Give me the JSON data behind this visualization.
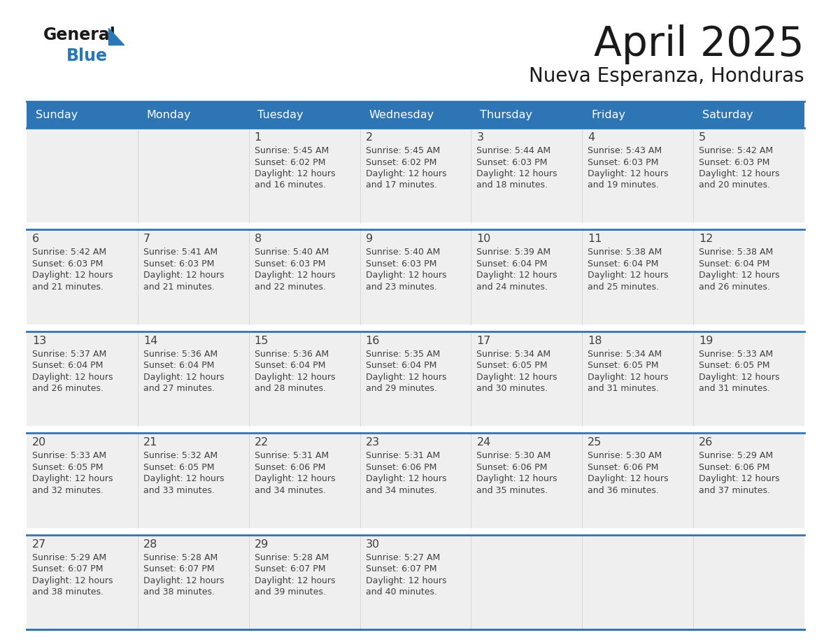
{
  "title": "April 2025",
  "subtitle": "Nueva Esperanza, Honduras",
  "header_bg": "#2E75B6",
  "header_text_color": "#FFFFFF",
  "cell_bg": "#EFEFEF",
  "row_gap_bg": "#FFFFFF",
  "border_color": "#2E75B6",
  "text_color": "#404040",
  "days_of_week": [
    "Sunday",
    "Monday",
    "Tuesday",
    "Wednesday",
    "Thursday",
    "Friday",
    "Saturday"
  ],
  "calendar_data": [
    [
      {
        "day": "",
        "sunrise": "",
        "sunset": "",
        "daylight": ""
      },
      {
        "day": "",
        "sunrise": "",
        "sunset": "",
        "daylight": ""
      },
      {
        "day": "1",
        "sunrise": "5:45 AM",
        "sunset": "6:02 PM",
        "daylight": "12 hours\nand 16 minutes."
      },
      {
        "day": "2",
        "sunrise": "5:45 AM",
        "sunset": "6:02 PM",
        "daylight": "12 hours\nand 17 minutes."
      },
      {
        "day": "3",
        "sunrise": "5:44 AM",
        "sunset": "6:03 PM",
        "daylight": "12 hours\nand 18 minutes."
      },
      {
        "day": "4",
        "sunrise": "5:43 AM",
        "sunset": "6:03 PM",
        "daylight": "12 hours\nand 19 minutes."
      },
      {
        "day": "5",
        "sunrise": "5:42 AM",
        "sunset": "6:03 PM",
        "daylight": "12 hours\nand 20 minutes."
      }
    ],
    [
      {
        "day": "6",
        "sunrise": "5:42 AM",
        "sunset": "6:03 PM",
        "daylight": "12 hours\nand 21 minutes."
      },
      {
        "day": "7",
        "sunrise": "5:41 AM",
        "sunset": "6:03 PM",
        "daylight": "12 hours\nand 21 minutes."
      },
      {
        "day": "8",
        "sunrise": "5:40 AM",
        "sunset": "6:03 PM",
        "daylight": "12 hours\nand 22 minutes."
      },
      {
        "day": "9",
        "sunrise": "5:40 AM",
        "sunset": "6:03 PM",
        "daylight": "12 hours\nand 23 minutes."
      },
      {
        "day": "10",
        "sunrise": "5:39 AM",
        "sunset": "6:04 PM",
        "daylight": "12 hours\nand 24 minutes."
      },
      {
        "day": "11",
        "sunrise": "5:38 AM",
        "sunset": "6:04 PM",
        "daylight": "12 hours\nand 25 minutes."
      },
      {
        "day": "12",
        "sunrise": "5:38 AM",
        "sunset": "6:04 PM",
        "daylight": "12 hours\nand 26 minutes."
      }
    ],
    [
      {
        "day": "13",
        "sunrise": "5:37 AM",
        "sunset": "6:04 PM",
        "daylight": "12 hours\nand 26 minutes."
      },
      {
        "day": "14",
        "sunrise": "5:36 AM",
        "sunset": "6:04 PM",
        "daylight": "12 hours\nand 27 minutes."
      },
      {
        "day": "15",
        "sunrise": "5:36 AM",
        "sunset": "6:04 PM",
        "daylight": "12 hours\nand 28 minutes."
      },
      {
        "day": "16",
        "sunrise": "5:35 AM",
        "sunset": "6:04 PM",
        "daylight": "12 hours\nand 29 minutes."
      },
      {
        "day": "17",
        "sunrise": "5:34 AM",
        "sunset": "6:05 PM",
        "daylight": "12 hours\nand 30 minutes."
      },
      {
        "day": "18",
        "sunrise": "5:34 AM",
        "sunset": "6:05 PM",
        "daylight": "12 hours\nand 31 minutes."
      },
      {
        "day": "19",
        "sunrise": "5:33 AM",
        "sunset": "6:05 PM",
        "daylight": "12 hours\nand 31 minutes."
      }
    ],
    [
      {
        "day": "20",
        "sunrise": "5:33 AM",
        "sunset": "6:05 PM",
        "daylight": "12 hours\nand 32 minutes."
      },
      {
        "day": "21",
        "sunrise": "5:32 AM",
        "sunset": "6:05 PM",
        "daylight": "12 hours\nand 33 minutes."
      },
      {
        "day": "22",
        "sunrise": "5:31 AM",
        "sunset": "6:06 PM",
        "daylight": "12 hours\nand 34 minutes."
      },
      {
        "day": "23",
        "sunrise": "5:31 AM",
        "sunset": "6:06 PM",
        "daylight": "12 hours\nand 34 minutes."
      },
      {
        "day": "24",
        "sunrise": "5:30 AM",
        "sunset": "6:06 PM",
        "daylight": "12 hours\nand 35 minutes."
      },
      {
        "day": "25",
        "sunrise": "5:30 AM",
        "sunset": "6:06 PM",
        "daylight": "12 hours\nand 36 minutes."
      },
      {
        "day": "26",
        "sunrise": "5:29 AM",
        "sunset": "6:06 PM",
        "daylight": "12 hours\nand 37 minutes."
      }
    ],
    [
      {
        "day": "27",
        "sunrise": "5:29 AM",
        "sunset": "6:07 PM",
        "daylight": "12 hours\nand 38 minutes."
      },
      {
        "day": "28",
        "sunrise": "5:28 AM",
        "sunset": "6:07 PM",
        "daylight": "12 hours\nand 38 minutes."
      },
      {
        "day": "29",
        "sunrise": "5:28 AM",
        "sunset": "6:07 PM",
        "daylight": "12 hours\nand 39 minutes."
      },
      {
        "day": "30",
        "sunrise": "5:27 AM",
        "sunset": "6:07 PM",
        "daylight": "12 hours\nand 40 minutes."
      },
      {
        "day": "",
        "sunrise": "",
        "sunset": "",
        "daylight": ""
      },
      {
        "day": "",
        "sunrise": "",
        "sunset": "",
        "daylight": ""
      },
      {
        "day": "",
        "sunrise": "",
        "sunset": "",
        "daylight": ""
      }
    ]
  ]
}
